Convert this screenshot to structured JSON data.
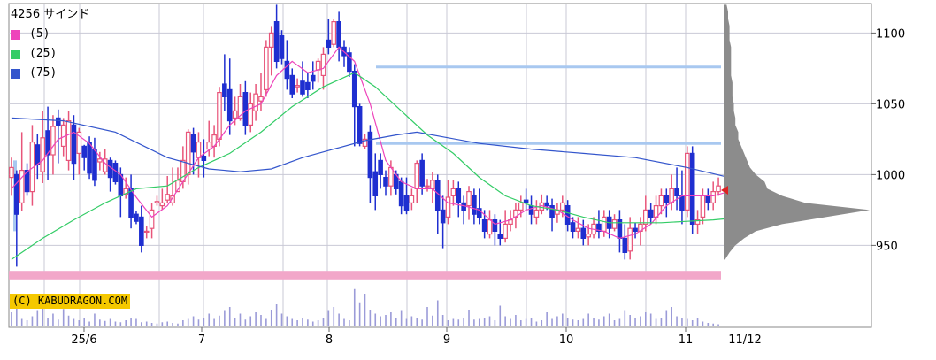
{
  "stock": {
    "code": "4256",
    "name": "サインド"
  },
  "legend": [
    {
      "label": "(5)",
      "color": "#ee44bb"
    },
    {
      "label": "(25)",
      "color": "#33cc66"
    },
    {
      "label": "(75)",
      "color": "#3355cc"
    }
  ],
  "copyright": "(C) KABUDRAGON.COM",
  "colors": {
    "up": "#e8557a",
    "down": "#1f2fd0",
    "grid": "#c9c9d6",
    "hline": "#a8c8f0",
    "band": "#f2a7c9",
    "volume": "#9b9bd8",
    "profile": "#8c8c8c",
    "marker": "#dd2222"
  },
  "chart_data": {
    "type": "candlestick",
    "x_axis": {
      "tick_labels": [
        "25/6",
        "7",
        "8",
        "9",
        "10",
        "11",
        "11/12"
      ]
    },
    "y_axis": {
      "tick_labels": [
        "1100",
        "1050",
        "1000",
        "950"
      ],
      "range": [
        895,
        1120
      ]
    },
    "candles": [
      [
        998,
        1005,
        985,
        1012
      ],
      [
        1000,
        972,
        935,
        1003
      ],
      [
        980,
        1003,
        974,
        1030
      ],
      [
        1003,
        988,
        985,
        1008
      ],
      [
        988,
        1023,
        978,
        1035
      ],
      [
        1021,
        1007,
        997,
        1029
      ],
      [
        1002,
        1026,
        994,
        1045
      ],
      [
        1031,
        1014,
        996,
        1048
      ],
      [
        1014,
        1034,
        1000,
        1042
      ],
      [
        1040,
        1035,
        1008,
        1046
      ],
      [
        1020,
        1035,
        1013,
        1040
      ],
      [
        1010,
        1038,
        1003,
        1045
      ],
      [
        1035,
        1008,
        996,
        1042
      ],
      [
        1015,
        1030,
        1000,
        1033
      ],
      [
        1020,
        1012,
        1003,
        1021
      ],
      [
        1023,
        1001,
        997,
        1027
      ],
      [
        1018,
        996,
        992,
        1026
      ],
      [
        1009,
        1011,
        1003,
        1016
      ],
      [
        1002,
        1011,
        1000,
        1018
      ],
      [
        1010,
        998,
        988,
        1012
      ],
      [
        1008,
        995,
        993,
        1010
      ],
      [
        1000,
        985,
        970,
        1005
      ],
      [
        986,
        990,
        983,
        998
      ],
      [
        990,
        970,
        962,
        1000
      ],
      [
        972,
        967,
        965,
        974
      ],
      [
        970,
        950,
        945,
        978
      ],
      [
        960,
        960,
        955,
        964
      ],
      [
        962,
        975,
        955,
        980
      ],
      [
        980,
        981,
        978,
        985
      ],
      [
        978,
        980,
        975,
        990
      ],
      [
        982,
        986,
        980,
        999
      ],
      [
        980,
        985,
        978,
        1005
      ],
      [
        988,
        996,
        990,
        1005
      ],
      [
        995,
        1010,
        990,
        1020
      ],
      [
        1000,
        1030,
        993,
        1032
      ],
      [
        1028,
        1016,
        1000,
        1033
      ],
      [
        1012,
        1023,
        998,
        1030
      ],
      [
        1013,
        1010,
        998,
        1025
      ],
      [
        1018,
        1023,
        1013,
        1038
      ],
      [
        1020,
        1028,
        1012,
        1035
      ],
      [
        1025,
        1058,
        1020,
        1062
      ],
      [
        1064,
        1055,
        1045,
        1085
      ],
      [
        1060,
        1038,
        1028,
        1082
      ],
      [
        1040,
        1045,
        1035,
        1055
      ],
      [
        1040,
        1055,
        1038,
        1064
      ],
      [
        1058,
        1035,
        1028,
        1066
      ],
      [
        1035,
        1050,
        1030,
        1058
      ],
      [
        1045,
        1057,
        1038,
        1064
      ],
      [
        1052,
        1055,
        1045,
        1072
      ],
      [
        1060,
        1090,
        1055,
        1095
      ],
      [
        1090,
        1100,
        1070,
        1105
      ],
      [
        1108,
        1080,
        1075,
        1120
      ],
      [
        1098,
        1082,
        1078,
        1102
      ],
      [
        1080,
        1068,
        1060,
        1095
      ],
      [
        1070,
        1057,
        1054,
        1075
      ],
      [
        1062,
        1063,
        1058,
        1068
      ],
      [
        1066,
        1057,
        1055,
        1080
      ],
      [
        1065,
        1060,
        1054,
        1072
      ],
      [
        1070,
        1066,
        1060,
        1080
      ],
      [
        1074,
        1080,
        1065,
        1082
      ],
      [
        1070,
        1085,
        1060,
        1090
      ],
      [
        1095,
        1090,
        1085,
        1110
      ],
      [
        1092,
        1108,
        1090,
        1110
      ],
      [
        1108,
        1090,
        1080,
        1115
      ],
      [
        1090,
        1084,
        1076,
        1095
      ],
      [
        1086,
        1073,
        1069,
        1090
      ],
      [
        1073,
        1048,
        1020,
        1078
      ],
      [
        1048,
        1022,
        1020,
        1050
      ],
      [
        1020,
        1025,
        1018,
        1029
      ],
      [
        1030,
        998,
        980,
        1035
      ],
      [
        1002,
        985,
        975,
        1015
      ],
      [
        1010,
        1000,
        990,
        1015
      ],
      [
        998,
        992,
        985,
        1003
      ],
      [
        992,
        1005,
        985,
        1010
      ],
      [
        1000,
        990,
        986,
        1003
      ],
      [
        995,
        978,
        972,
        998
      ],
      [
        985,
        975,
        972,
        998
      ],
      [
        980,
        985,
        975,
        990
      ],
      [
        990,
        1008,
        980,
        1010
      ],
      [
        1010,
        992,
        986,
        1015
      ],
      [
        992,
        992,
        988,
        997
      ],
      [
        990,
        996,
        980,
        1002
      ],
      [
        996,
        975,
        958,
        1000
      ],
      [
        975,
        966,
        948,
        985
      ],
      [
        970,
        984,
        965,
        996
      ],
      [
        985,
        990,
        978,
        996
      ],
      [
        990,
        980,
        970,
        995
      ],
      [
        980,
        975,
        965,
        985
      ],
      [
        978,
        988,
        968,
        992
      ],
      [
        985,
        972,
        965,
        990
      ],
      [
        976,
        970,
        965,
        990
      ],
      [
        968,
        960,
        955,
        975
      ],
      [
        958,
        968,
        955,
        975
      ],
      [
        968,
        960,
        950,
        972
      ],
      [
        958,
        955,
        950,
        968
      ],
      [
        955,
        965,
        952,
        975
      ],
      [
        965,
        968,
        960,
        975
      ],
      [
        970,
        975,
        962,
        980
      ],
      [
        975,
        980,
        970,
        985
      ],
      [
        982,
        980,
        975,
        990
      ],
      [
        978,
        972,
        965,
        985
      ],
      [
        970,
        975,
        965,
        982
      ],
      [
        975,
        980,
        972,
        986
      ],
      [
        980,
        978,
        975,
        985
      ],
      [
        978,
        970,
        960,
        983
      ],
      [
        972,
        975,
        966,
        980
      ],
      [
        975,
        980,
        970,
        985
      ],
      [
        978,
        965,
        960,
        982
      ],
      [
        966,
        960,
        955,
        970
      ],
      [
        960,
        962,
        955,
        970
      ],
      [
        962,
        955,
        950,
        968
      ],
      [
        956,
        958,
        950,
        965
      ],
      [
        958,
        965,
        955,
        970
      ],
      [
        965,
        960,
        955,
        975
      ],
      [
        960,
        970,
        956,
        975
      ],
      [
        970,
        962,
        955,
        975
      ],
      [
        962,
        968,
        960,
        972
      ],
      [
        968,
        955,
        945,
        975
      ],
      [
        955,
        945,
        940,
        965
      ],
      [
        946,
        962,
        940,
        970
      ],
      [
        962,
        960,
        955,
        966
      ],
      [
        960,
        965,
        950,
        970
      ],
      [
        965,
        975,
        960,
        985
      ],
      [
        975,
        970,
        965,
        980
      ],
      [
        970,
        978,
        965,
        985
      ],
      [
        978,
        985,
        972,
        990
      ],
      [
        985,
        980,
        970,
        990
      ],
      [
        980,
        990,
        975,
        1000
      ],
      [
        990,
        985,
        975,
        1005
      ],
      [
        985,
        975,
        965,
        1003
      ],
      [
        975,
        1015,
        970,
        1020
      ],
      [
        1015,
        965,
        958,
        1020
      ],
      [
        965,
        968,
        958,
        975
      ],
      [
        970,
        985,
        965,
        990
      ],
      [
        985,
        980,
        975,
        990
      ],
      [
        980,
        988,
        975,
        995
      ],
      [
        988,
        992,
        985,
        998
      ]
    ],
    "sma": {
      "5": [
        [
          0,
          990
        ],
        [
          3,
          1002
        ],
        [
          6,
          1010
        ],
        [
          9,
          1025
        ],
        [
          12,
          1030
        ],
        [
          15,
          1022
        ],
        [
          18,
          1008
        ],
        [
          21,
          1000
        ],
        [
          24,
          984
        ],
        [
          27,
          970
        ],
        [
          30,
          978
        ],
        [
          33,
          995
        ],
        [
          36,
          1012
        ],
        [
          39,
          1020
        ],
        [
          42,
          1035
        ],
        [
          45,
          1045
        ],
        [
          48,
          1050
        ],
        [
          51,
          1070
        ],
        [
          54,
          1080
        ],
        [
          57,
          1072
        ],
        [
          60,
          1075
        ],
        [
          63,
          1090
        ],
        [
          66,
          1080
        ],
        [
          69,
          1050
        ],
        [
          72,
          1010
        ],
        [
          75,
          995
        ],
        [
          78,
          990
        ],
        [
          81,
          990
        ],
        [
          84,
          980
        ],
        [
          87,
          978
        ],
        [
          90,
          975
        ],
        [
          93,
          965
        ],
        [
          96,
          968
        ],
        [
          99,
          975
        ],
        [
          102,
          978
        ],
        [
          105,
          975
        ],
        [
          108,
          968
        ],
        [
          111,
          962
        ],
        [
          114,
          960
        ],
        [
          117,
          955
        ],
        [
          120,
          958
        ],
        [
          123,
          965
        ],
        [
          126,
          978
        ],
        [
          129,
          985
        ],
        [
          132,
          985
        ],
        [
          135,
          985
        ],
        [
          138,
          988
        ]
      ],
      "25": [
        [
          0,
          940
        ],
        [
          6,
          955
        ],
        [
          12,
          968
        ],
        [
          18,
          980
        ],
        [
          24,
          990
        ],
        [
          30,
          992
        ],
        [
          36,
          1005
        ],
        [
          42,
          1015
        ],
        [
          48,
          1030
        ],
        [
          54,
          1048
        ],
        [
          60,
          1062
        ],
        [
          66,
          1072
        ],
        [
          70,
          1062
        ],
        [
          75,
          1045
        ],
        [
          80,
          1028
        ],
        [
          85,
          1015
        ],
        [
          90,
          998
        ],
        [
          95,
          985
        ],
        [
          100,
          978
        ],
        [
          105,
          975
        ],
        [
          110,
          970
        ],
        [
          115,
          966
        ],
        [
          120,
          966
        ],
        [
          125,
          966
        ],
        [
          130,
          967
        ],
        [
          135,
          968
        ],
        [
          138,
          969
        ]
      ],
      "75": [
        [
          0,
          1040
        ],
        [
          10,
          1038
        ],
        [
          20,
          1030
        ],
        [
          30,
          1012
        ],
        [
          38,
          1004
        ],
        [
          44,
          1002
        ],
        [
          50,
          1004
        ],
        [
          56,
          1012
        ],
        [
          62,
          1018
        ],
        [
          68,
          1024
        ],
        [
          74,
          1028
        ],
        [
          78,
          1030
        ],
        [
          84,
          1026
        ],
        [
          90,
          1022
        ],
        [
          100,
          1018
        ],
        [
          110,
          1015
        ],
        [
          120,
          1012
        ],
        [
          130,
          1005
        ],
        [
          138,
          998
        ]
      ]
    },
    "horizontal_lines": [
      1076,
      1022
    ],
    "pink_band": {
      "from": 926,
      "to": 932
    },
    "volume_max": 100,
    "volume": [
      20,
      45,
      10,
      8,
      14,
      22,
      30,
      12,
      18,
      9,
      25,
      15,
      10,
      8,
      12,
      6,
      18,
      9,
      7,
      10,
      6,
      5,
      8,
      12,
      10,
      5,
      6,
      4,
      3,
      5,
      6,
      4,
      3,
      8,
      10,
      14,
      9,
      12,
      18,
      10,
      15,
      22,
      28,
      12,
      18,
      9,
      14,
      20,
      16,
      10,
      24,
      32,
      18,
      14,
      10,
      8,
      12,
      9,
      6,
      8,
      12,
      22,
      28,
      18,
      10,
      8,
      55,
      35,
      48,
      24,
      18,
      14,
      16,
      20,
      12,
      22,
      10,
      14,
      12,
      9,
      28,
      15,
      38,
      16,
      8,
      10,
      9,
      12,
      24,
      9,
      10,
      12,
      14,
      8,
      30,
      14,
      10,
      16,
      8,
      10,
      12,
      6,
      8,
      20,
      10,
      14,
      18,
      12,
      9,
      8,
      10,
      18,
      12,
      9,
      14,
      18,
      8,
      10,
      22,
      16,
      12,
      14,
      20,
      18,
      10,
      12,
      22,
      28,
      14,
      12,
      10,
      8,
      12,
      6,
      4,
      3,
      2
    ],
    "profile": [
      [
        940,
        1
      ],
      [
        945,
        4
      ],
      [
        950,
        8
      ],
      [
        955,
        14
      ],
      [
        960,
        22
      ],
      [
        965,
        40
      ],
      [
        970,
        70
      ],
      [
        975,
        100
      ],
      [
        980,
        56
      ],
      [
        985,
        40
      ],
      [
        990,
        30
      ],
      [
        995,
        28
      ],
      [
        1000,
        22
      ],
      [
        1005,
        18
      ],
      [
        1010,
        16
      ],
      [
        1015,
        14
      ],
      [
        1020,
        12
      ],
      [
        1025,
        10
      ],
      [
        1030,
        10
      ],
      [
        1035,
        8
      ],
      [
        1040,
        8
      ],
      [
        1045,
        7
      ],
      [
        1050,
        7
      ],
      [
        1055,
        6
      ],
      [
        1060,
        6
      ],
      [
        1065,
        6
      ],
      [
        1070,
        5
      ],
      [
        1075,
        5
      ],
      [
        1080,
        5
      ],
      [
        1085,
        5
      ],
      [
        1090,
        5
      ],
      [
        1095,
        4
      ],
      [
        1100,
        4
      ],
      [
        1105,
        4
      ],
      [
        1110,
        3
      ],
      [
        1115,
        3
      ],
      [
        1120,
        2
      ]
    ],
    "current_price": 989
  }
}
